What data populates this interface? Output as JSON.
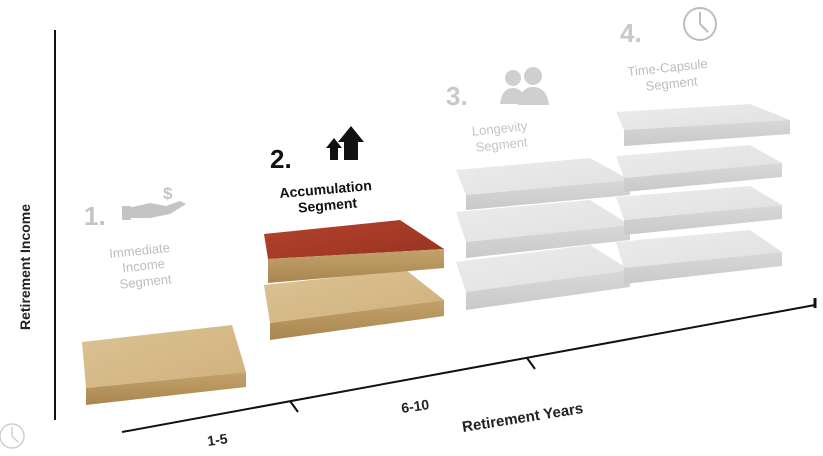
{
  "axes": {
    "y_label": "Retirement Income",
    "x_label": "Retirement Years",
    "ticks": [
      "1-5",
      "6-10"
    ]
  },
  "segments": [
    {
      "number": "1.",
      "title_lines": [
        "Immediate",
        "Income",
        "Segment"
      ],
      "icon": "hand-dollar-icon",
      "layers": 1,
      "color": "#c8a873"
    },
    {
      "number": "2.",
      "title_lines": [
        "Accumulation",
        "Segment"
      ],
      "icon": "growth-arrows-icon",
      "layers": 2,
      "color": "#c8a873",
      "accent": "#a83a26"
    },
    {
      "number": "3.",
      "title_lines": [
        "Longevity",
        "Segment"
      ],
      "icon": "couple-icon",
      "layers": 3,
      "color": "#e3e3e3"
    },
    {
      "number": "4.",
      "title_lines": [
        "Time-Capsule",
        "Segment"
      ],
      "icon": "clock-icon",
      "layers": 4,
      "color": "#e3e3e3"
    }
  ],
  "colors": {
    "inactive_text": "#bdbdbd",
    "active_text": "#111111",
    "tan_top": "#d5b98a",
    "tan_side": "#b8955f",
    "red_top": "#a83a26",
    "gray_top": "#e6e6e6",
    "gray_side": "#d2d2d2"
  }
}
